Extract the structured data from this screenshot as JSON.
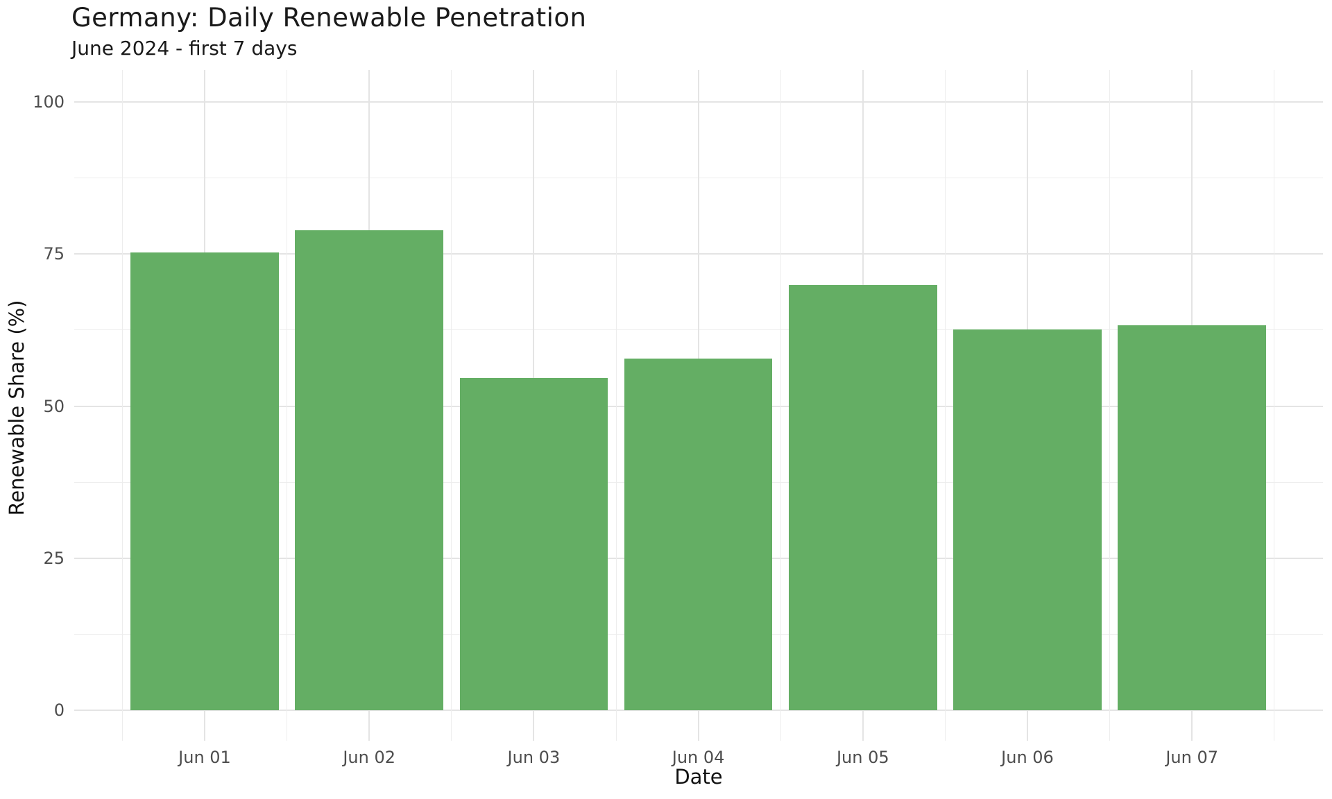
{
  "title": "Germany: Daily Renewable Penetration",
  "subtitle": "June 2024 - first 7 days",
  "chart_data": {
    "type": "bar",
    "title": "Germany: Daily Renewable Penetration",
    "subtitle": "June 2024 - first 7 days",
    "xlabel": "Date",
    "ylabel": "Renewable Share (%)",
    "categories": [
      "Jun 01",
      "Jun 02",
      "Jun 03",
      "Jun 04",
      "Jun 05",
      "Jun 06",
      "Jun 07"
    ],
    "values": [
      75.2,
      78.9,
      54.6,
      57.8,
      69.9,
      62.6,
      63.3
    ],
    "ylim": [
      0,
      100
    ],
    "yticks": [
      0,
      25,
      50,
      75,
      100
    ],
    "grid": "major and minor, light gray, horizontal and vertical",
    "legend_position": "none",
    "bar_color": "#64ae64"
  },
  "colors": {
    "bar_fill": "#64ae64",
    "grid_major": "#e4e4e4",
    "grid_minor": "#ededed",
    "tick_label": "#4d4d4d",
    "axis_title": "#111111",
    "title_text": "#1a1a1a",
    "background": "#ffffff"
  }
}
